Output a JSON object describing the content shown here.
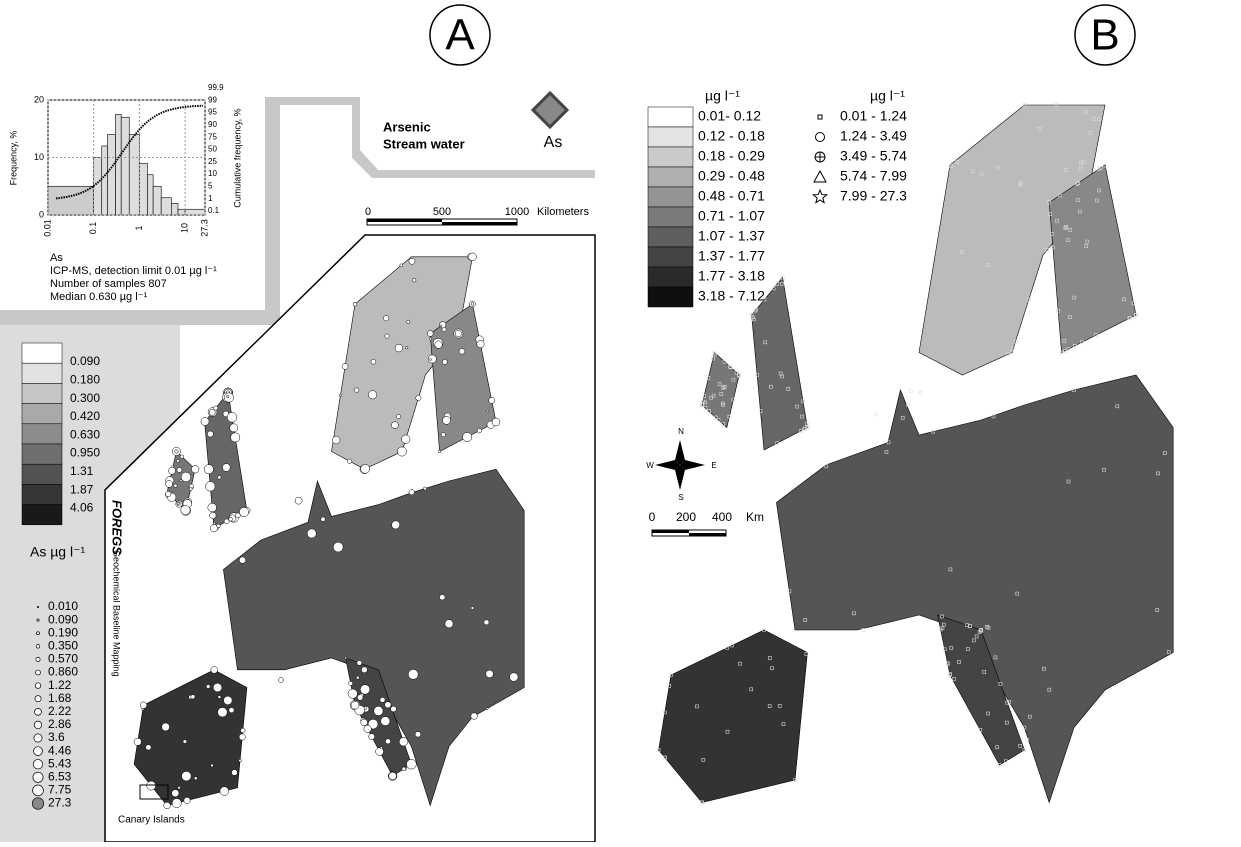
{
  "panel_a": {
    "label": "A",
    "title": [
      "Arsenic",
      "Stream water"
    ],
    "element": "As",
    "histogram": {
      "type": "histogram",
      "y_label": "Frequency, %",
      "y2_label": "Cumulative frequency, %",
      "bins": [
        0.01,
        0.1,
        0.15,
        0.2,
        0.3,
        0.4,
        0.6,
        1,
        1.5,
        2,
        3,
        5,
        7,
        10,
        27.3
      ],
      "values": [
        5,
        10,
        12,
        14,
        17.5,
        17,
        14,
        9,
        7,
        5,
        3,
        2,
        1,
        1
      ],
      "xlim": [
        0.01,
        27.3
      ],
      "xticks": [
        0.01,
        0.1,
        1,
        10,
        27.3
      ],
      "log_x": true,
      "ylim": [
        0,
        20
      ],
      "yticks": [
        0,
        10,
        20
      ],
      "y2ticks": [
        "99.9",
        "99",
        "95",
        "90",
        "75",
        "50",
        "25",
        "10",
        "5",
        "1",
        "0.1"
      ]
    },
    "info": [
      "As",
      "ICP-MS, detection limit 0.01 µg l⁻¹",
      "Number of samples 807",
      "Median 0.630 µg l⁻¹"
    ],
    "scale": {
      "ticks": [
        "0",
        "500",
        "1000"
      ],
      "unit": "Kilometers"
    },
    "color_legend": [
      "0.090",
      "0.180",
      "0.300",
      "0.420",
      "0.630",
      "0.950",
      "1.31",
      "1.87",
      "4.06"
    ],
    "symbol_legend_title": "As µg l⁻¹",
    "symbol_legend": [
      "0.010",
      "0.090",
      "0.190",
      "0.350",
      "0.570",
      "0.860",
      "1.22",
      "1.68",
      "2.22",
      "2.86",
      "3.6",
      "4.46",
      "5.43",
      "6.53",
      "7.75",
      "27.3"
    ],
    "logo": "FOREGS",
    "logo_text": "Geochemical Baseline Mapping",
    "inset_label": "Canary Islands"
  },
  "panel_b": {
    "label": "B",
    "color_legend_title": "µg l⁻¹",
    "color_legend": [
      "0.01- 0.12",
      "0.12 - 0.18",
      "0.18 - 0.29",
      "0.29 - 0.48",
      "0.48 - 0.71",
      "0.71 - 1.07",
      "1.07 - 1.37",
      "1.37 - 1.77",
      "1.77 - 3.18",
      "3.18 - 7.12"
    ],
    "symbol_legend_title": "µg l⁻¹",
    "symbol_legend": [
      "0.01 - 1.24",
      "1.24 - 3.49",
      "3.49 - 5.74",
      "5.74 - 7.99",
      "7.99 - 27.3"
    ],
    "compass": [
      "N",
      "S",
      "W",
      "E"
    ],
    "scale": {
      "ticks": [
        "0",
        "200",
        "400"
      ],
      "unit": "Km"
    }
  }
}
